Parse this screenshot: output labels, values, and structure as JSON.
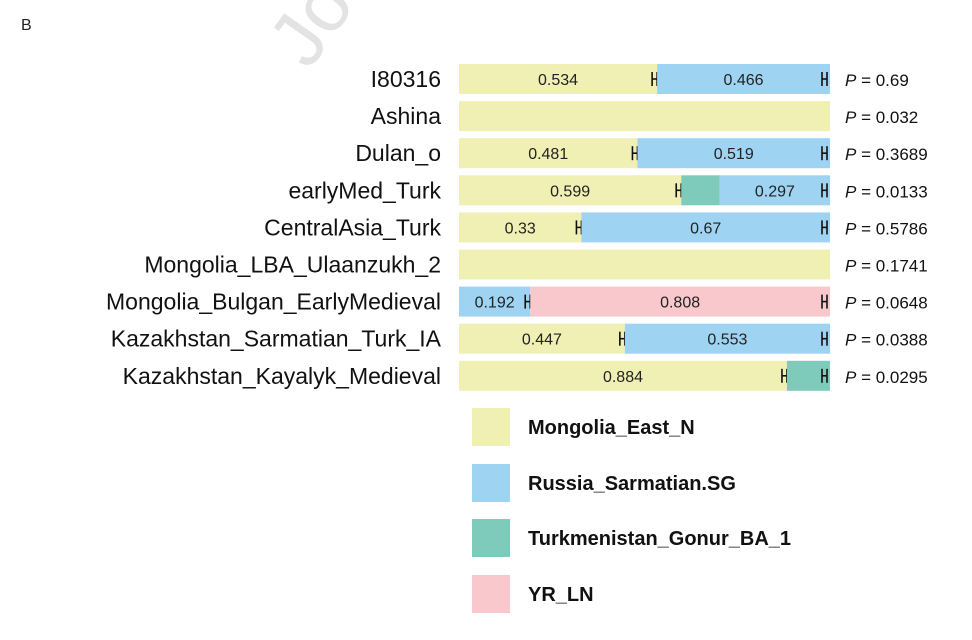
{
  "panel_letter": "B",
  "watermark": "Journal",
  "chart_data": {
    "type": "bar",
    "orientation": "horizontal",
    "stacked": true,
    "normalized": true,
    "xlim": [
      0,
      1
    ],
    "title": "",
    "xlabel": "",
    "ylabel": "",
    "categories": [
      "I80316",
      "Ashina",
      "Dulan_o",
      "earlyMed_Turk",
      "CentralAsia_Turk",
      "Mongolia_LBA_Ulaanzukh_2",
      "Mongolia_Bulgan_EarlyMedieval",
      "Kazakhstan_Sarmatian_Turk_IA",
      "Kazakhstan_Kayalyk_Medieval"
    ],
    "series": [
      {
        "name": "Mongolia_East_N",
        "color": "#f0f0b4",
        "values": [
          0.534,
          1.0,
          0.481,
          0.599,
          0.33,
          1.0,
          0,
          0.447,
          0.884
        ],
        "labels": [
          "0.534",
          "",
          "0.481",
          "0.599",
          "0.33",
          "",
          "",
          "0.447",
          "0.884"
        ]
      },
      {
        "name": "Russia_Sarmatian.SG",
        "color": "#9fd3f2",
        "values": [
          0.466,
          0,
          0.519,
          0.297,
          0.67,
          0,
          0.192,
          0.553,
          0
        ],
        "labels": [
          "0.466",
          "",
          "0.519",
          "0.297",
          "0.67",
          "",
          "0.192",
          "0.553",
          ""
        ]
      },
      {
        "name": "Turkmenistan_Gonur_BA_1",
        "color": "#7ecbbc",
        "values": [
          0,
          0,
          0,
          0.104,
          0,
          0,
          0,
          0,
          0.116
        ],
        "labels": [
          "",
          "",
          "",
          "",
          "",
          "",
          "",
          "",
          ""
        ]
      },
      {
        "name": "YR_LN",
        "color": "#f8c8cc",
        "values": [
          0,
          0,
          0,
          0,
          0,
          0,
          0.808,
          0,
          0
        ],
        "labels": [
          "",
          "",
          "",
          "",
          "",
          "",
          "0.808",
          "",
          ""
        ]
      }
    ],
    "segment_order": [
      [
        0,
        1
      ],
      [
        0
      ],
      [
        0,
        1
      ],
      [
        0,
        2,
        1
      ],
      [
        0,
        1
      ],
      [
        0
      ],
      [
        1,
        3
      ],
      [
        0,
        1
      ],
      [
        0,
        2
      ]
    ],
    "error_bars": true,
    "p_label": "P",
    "p_values": [
      "0.69",
      "0.032",
      "0.3689",
      "0.0133",
      "0.5786",
      "0.1741",
      "0.0648",
      "0.0388",
      "0.0295"
    ],
    "legend_position": "bottom",
    "grid": false
  }
}
